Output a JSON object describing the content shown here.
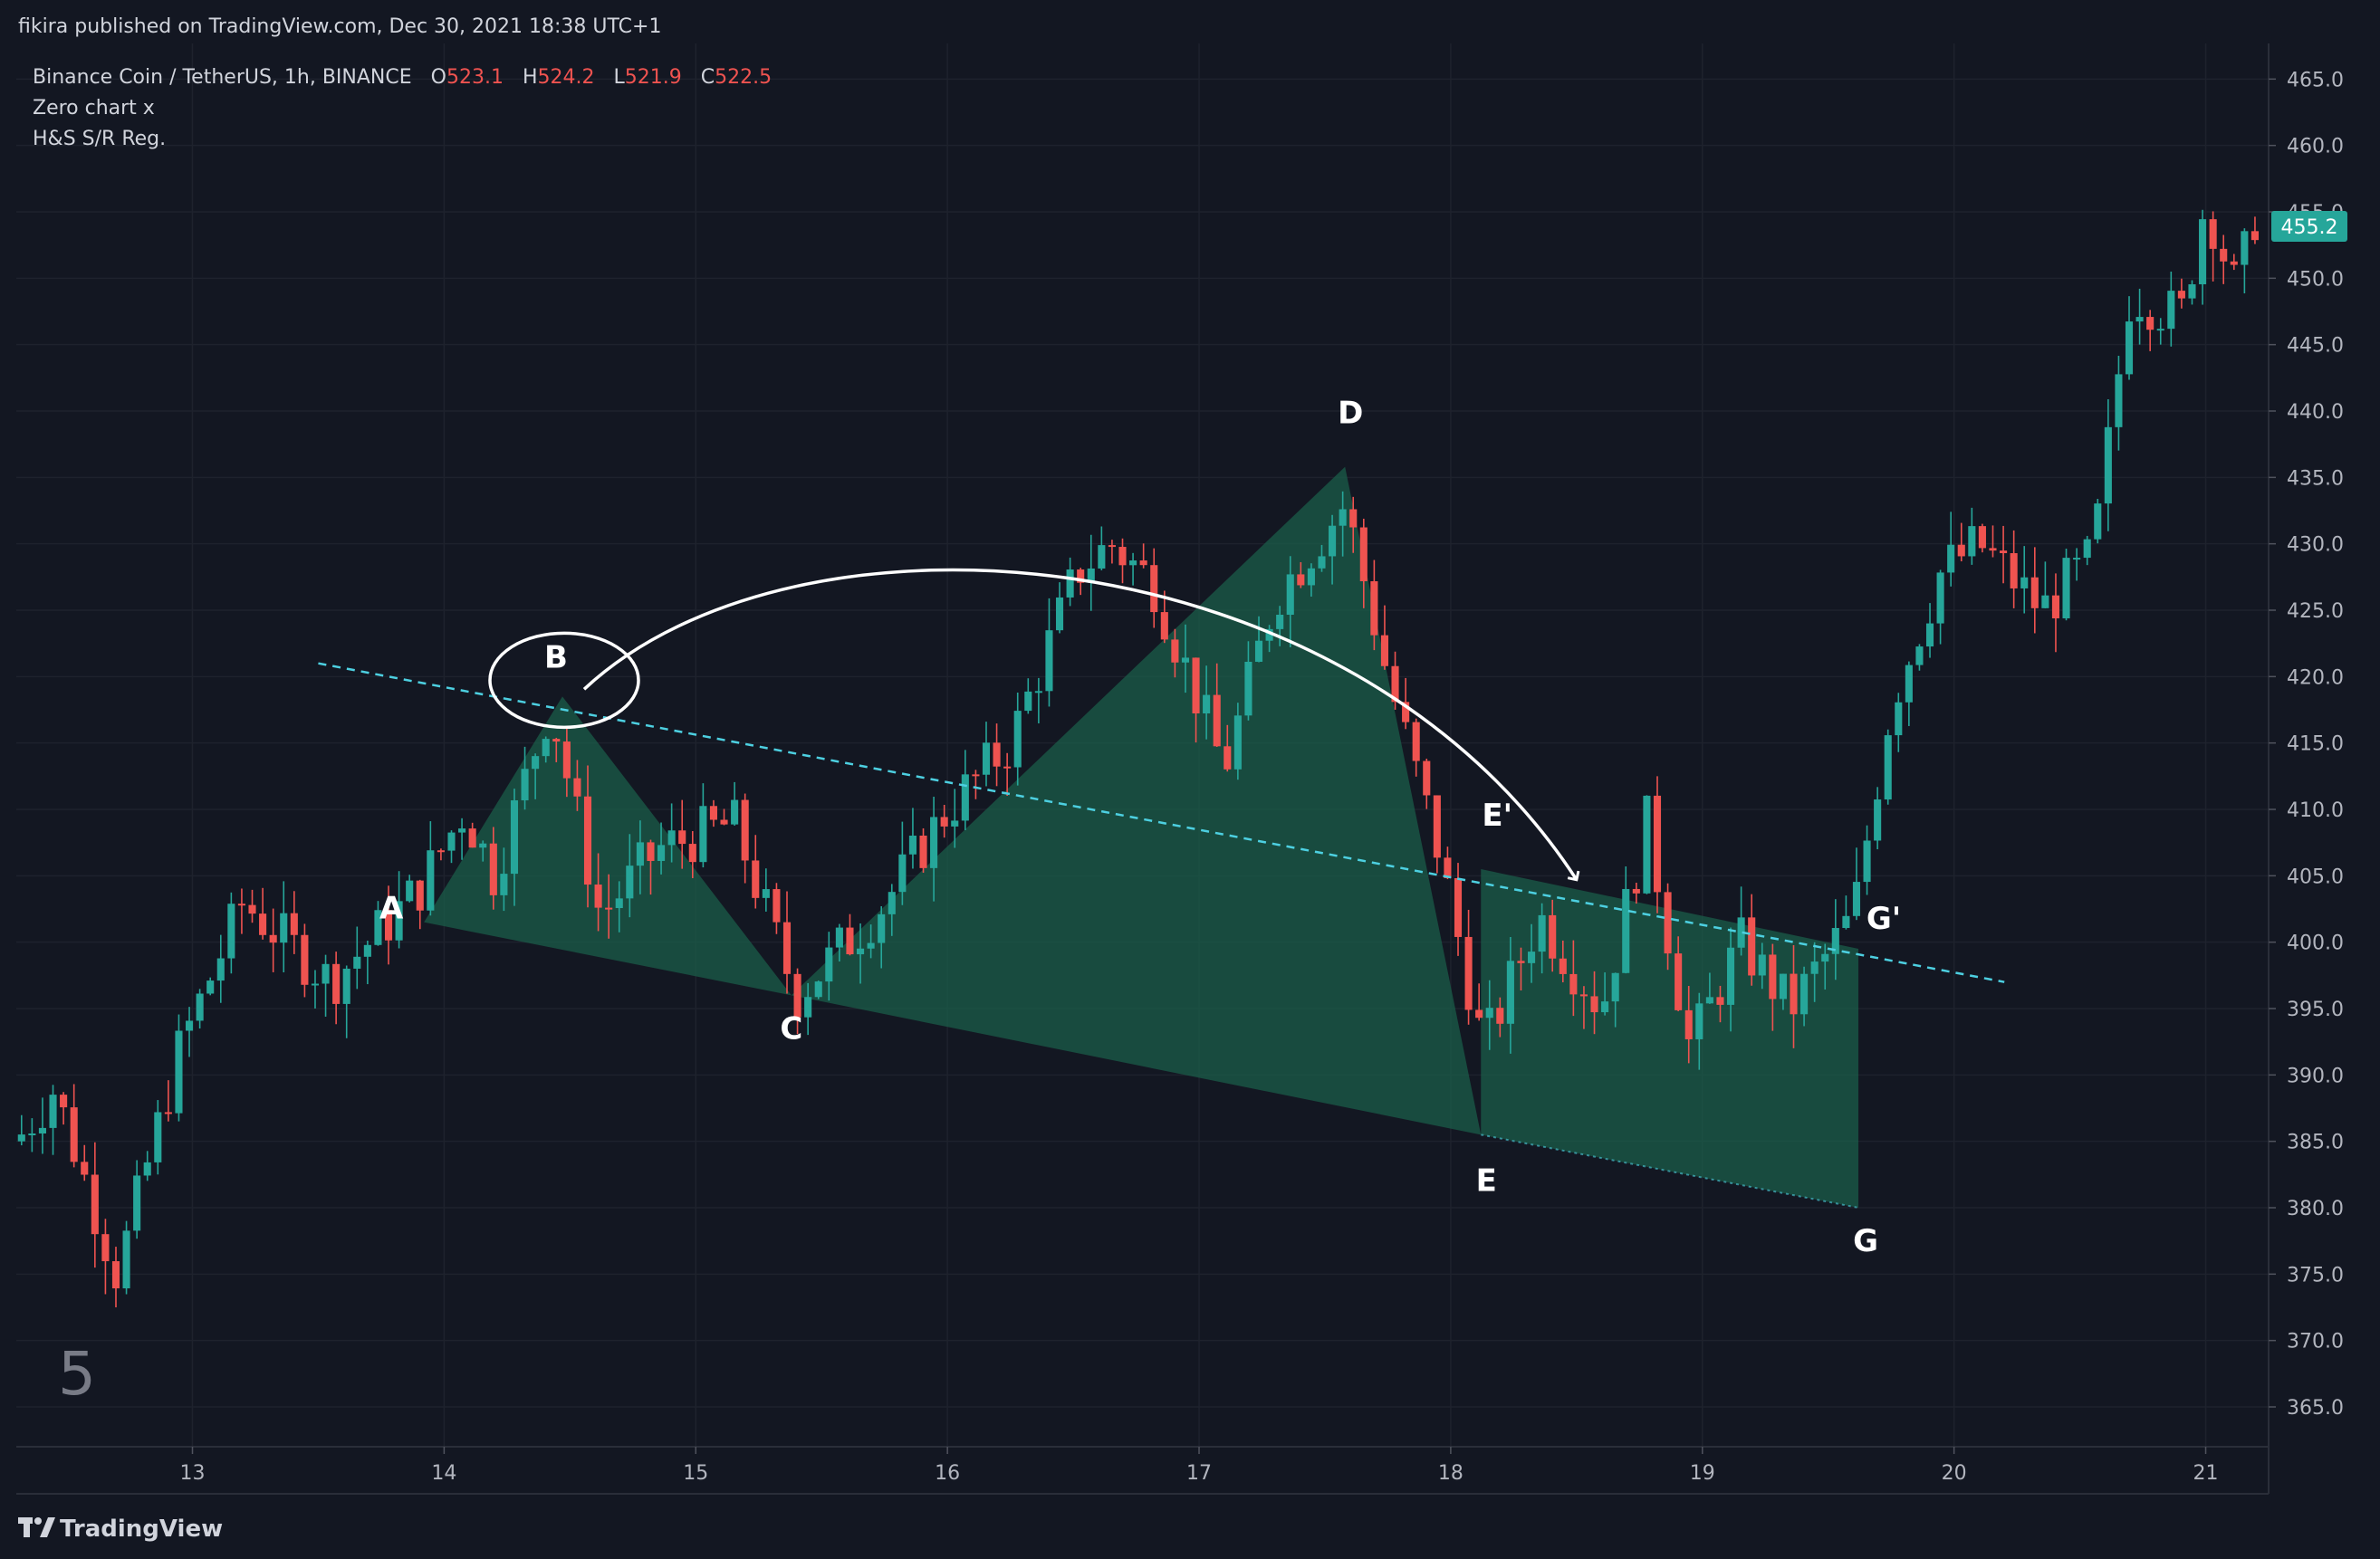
{
  "header": {
    "published_by": "fikira published on TradingView.com, Dec 30, 2021 18:38 UTC+1"
  },
  "legend": {
    "symbol_line": "Binance Coin / TetherUS, 1h, BINANCE",
    "ohlc": [
      {
        "key": "O",
        "value": "523.1"
      },
      {
        "key": "H",
        "value": "524.2"
      },
      {
        "key": "L",
        "value": "521.9"
      },
      {
        "key": "C",
        "value": "522.5"
      }
    ],
    "indicators": [
      "Zero chart x",
      "H&S S/R Reg."
    ]
  },
  "price_badge": "455.2",
  "pane_number": "5",
  "footer": {
    "brand": "TradingView",
    "brand_icon": "tradingview-logo-icon"
  },
  "colors": {
    "background": "#131722",
    "grid": "#1e222d",
    "up": "#26a69a",
    "down": "#ef5350",
    "pattern_fill": "#1b5e4a",
    "neckline": "#4dd0e1",
    "annotation": "#ffffff",
    "badge": "#26a69a"
  },
  "chart_data": {
    "type": "candlestick",
    "y_axis": {
      "ticks": [
        "465.0",
        "460.0",
        "455.0",
        "450.0",
        "445.0",
        "440.0",
        "435.0",
        "430.0",
        "425.0",
        "420.0",
        "415.0",
        "410.0",
        "405.0",
        "400.0",
        "395.0",
        "390.0",
        "385.0",
        "380.0",
        "375.0",
        "370.0",
        "365.0"
      ],
      "ylim": [
        362,
        467
      ]
    },
    "x_axis": {
      "ticks": [
        {
          "day": 13,
          "label": "13"
        },
        {
          "day": 14,
          "label": "14"
        },
        {
          "day": 15,
          "label": "15"
        },
        {
          "day": 16,
          "label": "16"
        },
        {
          "day": 17,
          "label": "17"
        },
        {
          "day": 18,
          "label": "18"
        },
        {
          "day": 19,
          "label": "19"
        },
        {
          "day": 20,
          "label": "20"
        },
        {
          "day": 21,
          "label": "21"
        }
      ],
      "xlim": [
        12.3,
        21.25
      ]
    },
    "anchors": [
      {
        "day": 12.3,
        "price": 385
      },
      {
        "day": 12.45,
        "price": 389
      },
      {
        "day": 12.7,
        "price": 375
      },
      {
        "day": 12.95,
        "price": 392
      },
      {
        "day": 13.2,
        "price": 403
      },
      {
        "day": 13.55,
        "price": 397
      },
      {
        "day": 13.9,
        "price": 404
      },
      {
        "day": 14.08,
        "price": 410
      },
      {
        "day": 14.2,
        "price": 405
      },
      {
        "day": 14.42,
        "price": 418
      },
      {
        "day": 14.62,
        "price": 402
      },
      {
        "day": 14.85,
        "price": 407
      },
      {
        "day": 15.15,
        "price": 409
      },
      {
        "day": 15.4,
        "price": 396
      },
      {
        "day": 15.75,
        "price": 403
      },
      {
        "day": 16.0,
        "price": 410
      },
      {
        "day": 16.25,
        "price": 415
      },
      {
        "day": 16.52,
        "price": 428
      },
      {
        "day": 16.65,
        "price": 430
      },
      {
        "day": 16.82,
        "price": 427
      },
      {
        "day": 17.1,
        "price": 413
      },
      {
        "day": 17.3,
        "price": 426
      },
      {
        "day": 17.58,
        "price": 433
      },
      {
        "day": 17.75,
        "price": 420
      },
      {
        "day": 17.95,
        "price": 407
      },
      {
        "day": 18.13,
        "price": 392
      },
      {
        "day": 18.35,
        "price": 402
      },
      {
        "day": 18.6,
        "price": 395
      },
      {
        "day": 18.78,
        "price": 409
      },
      {
        "day": 18.95,
        "price": 392
      },
      {
        "day": 19.15,
        "price": 400
      },
      {
        "day": 19.35,
        "price": 395
      },
      {
        "day": 19.6,
        "price": 402
      },
      {
        "day": 19.75,
        "price": 418
      },
      {
        "day": 19.95,
        "price": 428
      },
      {
        "day": 20.1,
        "price": 430
      },
      {
        "day": 20.35,
        "price": 425
      },
      {
        "day": 20.55,
        "price": 429
      },
      {
        "day": 20.7,
        "price": 449
      },
      {
        "day": 20.9,
        "price": 447
      },
      {
        "day": 21.0,
        "price": 456
      },
      {
        "day": 21.12,
        "price": 449
      },
      {
        "day": 21.2,
        "price": 455
      }
    ],
    "pattern_points": [
      {
        "label": "A",
        "day": 13.92,
        "price": 401.5
      },
      {
        "label": "B",
        "day": 14.47,
        "price": 418.5
      },
      {
        "label": "C",
        "day": 15.38,
        "price": 396.0
      },
      {
        "label": "D",
        "day": 17.58,
        "price": 435.8
      },
      {
        "label": "E",
        "day": 18.12,
        "price": 385.5
      },
      {
        "label": "E'",
        "day": 18.12,
        "price": 405.5
      },
      {
        "label": "G",
        "day": 19.62,
        "price": 380.0
      },
      {
        "label": "G'",
        "day": 19.62,
        "price": 399.5
      }
    ],
    "neckline": {
      "from": {
        "day": 13.5,
        "price": 421.0
      },
      "to": {
        "day": 20.2,
        "price": 397.0
      }
    }
  }
}
